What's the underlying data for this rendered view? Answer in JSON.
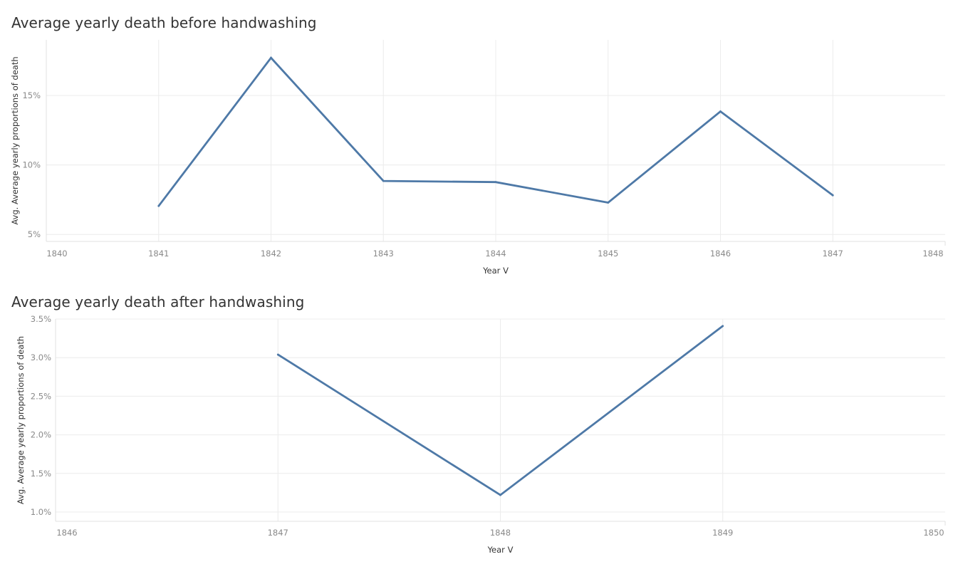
{
  "charts": [
    {
      "title": "Average yearly death before handwashing",
      "chart_data": {
        "type": "line",
        "x": [
          1841,
          1842,
          1843,
          1844,
          1845,
          1846,
          1847
        ],
        "values": [
          0.0705,
          0.1771,
          0.0885,
          0.0877,
          0.0729,
          0.1385,
          0.0782
        ],
        "xlabel": "Year V",
        "ylabel": "Avg. Average yearly proportions of death",
        "xlim": [
          1840,
          1848
        ],
        "ylim": [
          0.045,
          0.19
        ],
        "x_ticks": [
          "1840",
          "1841",
          "1842",
          "1843",
          "1844",
          "1845",
          "1846",
          "1847",
          "1848"
        ],
        "y_ticks": [
          {
            "value": 0.05,
            "label": "5%"
          },
          {
            "value": 0.1,
            "label": "10%"
          },
          {
            "value": 0.15,
            "label": "15%"
          }
        ],
        "line_color": "#4e79a7",
        "grid": true
      }
    },
    {
      "title": "Average yearly death after handwashing",
      "chart_data": {
        "type": "line",
        "x": [
          1847,
          1848,
          1849
        ],
        "values": [
          0.0304,
          0.0122,
          0.0341
        ],
        "xlabel": "Year V",
        "ylabel": "Avg. Average yearly proportions of death",
        "xlim": [
          1846,
          1850
        ],
        "ylim": [
          0.0088,
          0.035
        ],
        "x_ticks": [
          "1846",
          "1847",
          "1848",
          "1849",
          "1850"
        ],
        "y_ticks": [
          {
            "value": 0.01,
            "label": "1.0%"
          },
          {
            "value": 0.015,
            "label": "1.5%"
          },
          {
            "value": 0.02,
            "label": "2.0%"
          },
          {
            "value": 0.025,
            "label": "2.5%"
          },
          {
            "value": 0.03,
            "label": "3.0%"
          },
          {
            "value": 0.035,
            "label": "3.5%"
          }
        ],
        "line_color": "#4e79a7",
        "grid": true
      }
    }
  ]
}
